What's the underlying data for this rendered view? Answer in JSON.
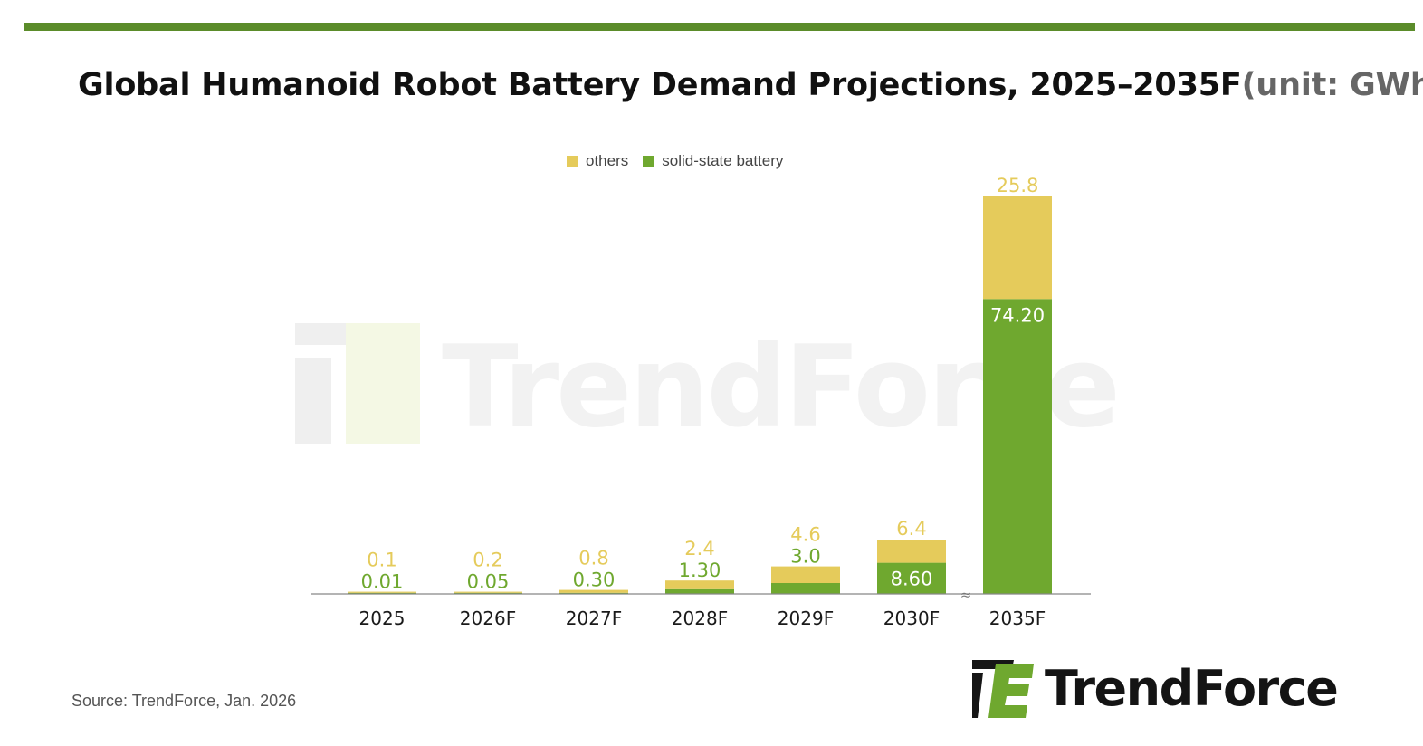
{
  "page": {
    "title": "Global Humanoid Robot Battery Demand Projections, 2025–2035F",
    "unit_label": "(unit: GWh)",
    "source": "Source: TrendForce, Jan. 2026",
    "brand": "TrendForce",
    "watermark": "TrendForce"
  },
  "colors": {
    "accent_rule": "#5b8c2a",
    "solid_state": "#6fa82f",
    "others": "#e5cb5b",
    "axis": "#888888",
    "tick_text": "#1a1a1a",
    "watermark": "#f3f3f3"
  },
  "chart_data": {
    "type": "bar",
    "stacked": true,
    "title": "Global Humanoid Robot Battery Demand Projections, 2025–2035F",
    "unit": "GWh",
    "xlabel": "",
    "ylabel": "",
    "axis_break_before": "2035F",
    "categories": [
      "2025",
      "2026F",
      "2027F",
      "2028F",
      "2029F",
      "2030F",
      "2035F"
    ],
    "legend": [
      "others",
      "solid-state battery"
    ],
    "legend_position": "top-center",
    "series": [
      {
        "name": "solid-state battery",
        "values": [
          0.01,
          0.05,
          0.3,
          1.3,
          3.0,
          8.6,
          74.2
        ],
        "labels": [
          "0.01",
          "0.05",
          "0.30",
          "1.30",
          "3.0",
          "8.60",
          "74.20"
        ]
      },
      {
        "name": "others",
        "values": [
          0.1,
          0.2,
          0.8,
          2.4,
          4.6,
          6.4,
          25.8
        ],
        "labels": [
          "0.1",
          "0.2",
          "0.8",
          "2.4",
          "4.6",
          "6.4",
          "25.8"
        ]
      }
    ]
  }
}
